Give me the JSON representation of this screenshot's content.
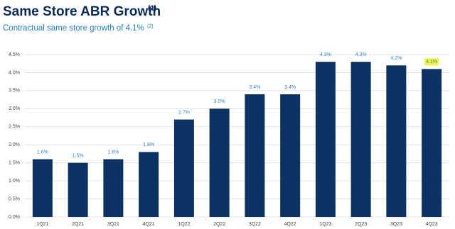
{
  "chart_data": {
    "type": "bar",
    "title": "Same Store ABR Growth",
    "title_note": "(1)",
    "subtitle": "Contractual same store growth of 4.1%",
    "subtitle_note": "(2)",
    "categories": [
      "1Q21",
      "2Q21",
      "3Q21",
      "4Q21",
      "1Q22",
      "2Q22",
      "3Q22",
      "4Q22",
      "1Q23",
      "2Q23",
      "3Q23",
      "4Q23"
    ],
    "values": [
      1.6,
      1.5,
      1.6,
      1.8,
      2.7,
      3.0,
      3.4,
      3.4,
      4.3,
      4.3,
      4.2,
      4.1
    ],
    "value_labels": [
      "1.6%",
      "1.5%",
      "1.6%",
      "1.8%",
      "2.7%",
      "3.0%",
      "3.4%",
      "3.4%",
      "4.3%",
      "4.3%",
      "4.2%",
      "4.1%"
    ],
    "color": "#0b3263",
    "value_label_color": "#2f86c6",
    "highlight": {
      "index": 11,
      "color": "#f4f43a"
    },
    "ylim": [
      0,
      4.5
    ],
    "yticks": [
      {
        "value": 0,
        "label": "0.0%"
      },
      {
        "value": 0.5,
        "label": "0.5%"
      },
      {
        "value": 1,
        "label": "1.0%"
      },
      {
        "value": 1.5,
        "label": "1.5%"
      },
      {
        "value": 2,
        "label": "2.0%"
      },
      {
        "value": 2.5,
        "label": "2.5%"
      },
      {
        "value": 3,
        "label": "3.0%"
      },
      {
        "value": 3.5,
        "label": "3.5%"
      },
      {
        "value": 4,
        "label": "4.0%"
      },
      {
        "value": 4.5,
        "label": "4.5%"
      }
    ],
    "grid": true
  }
}
